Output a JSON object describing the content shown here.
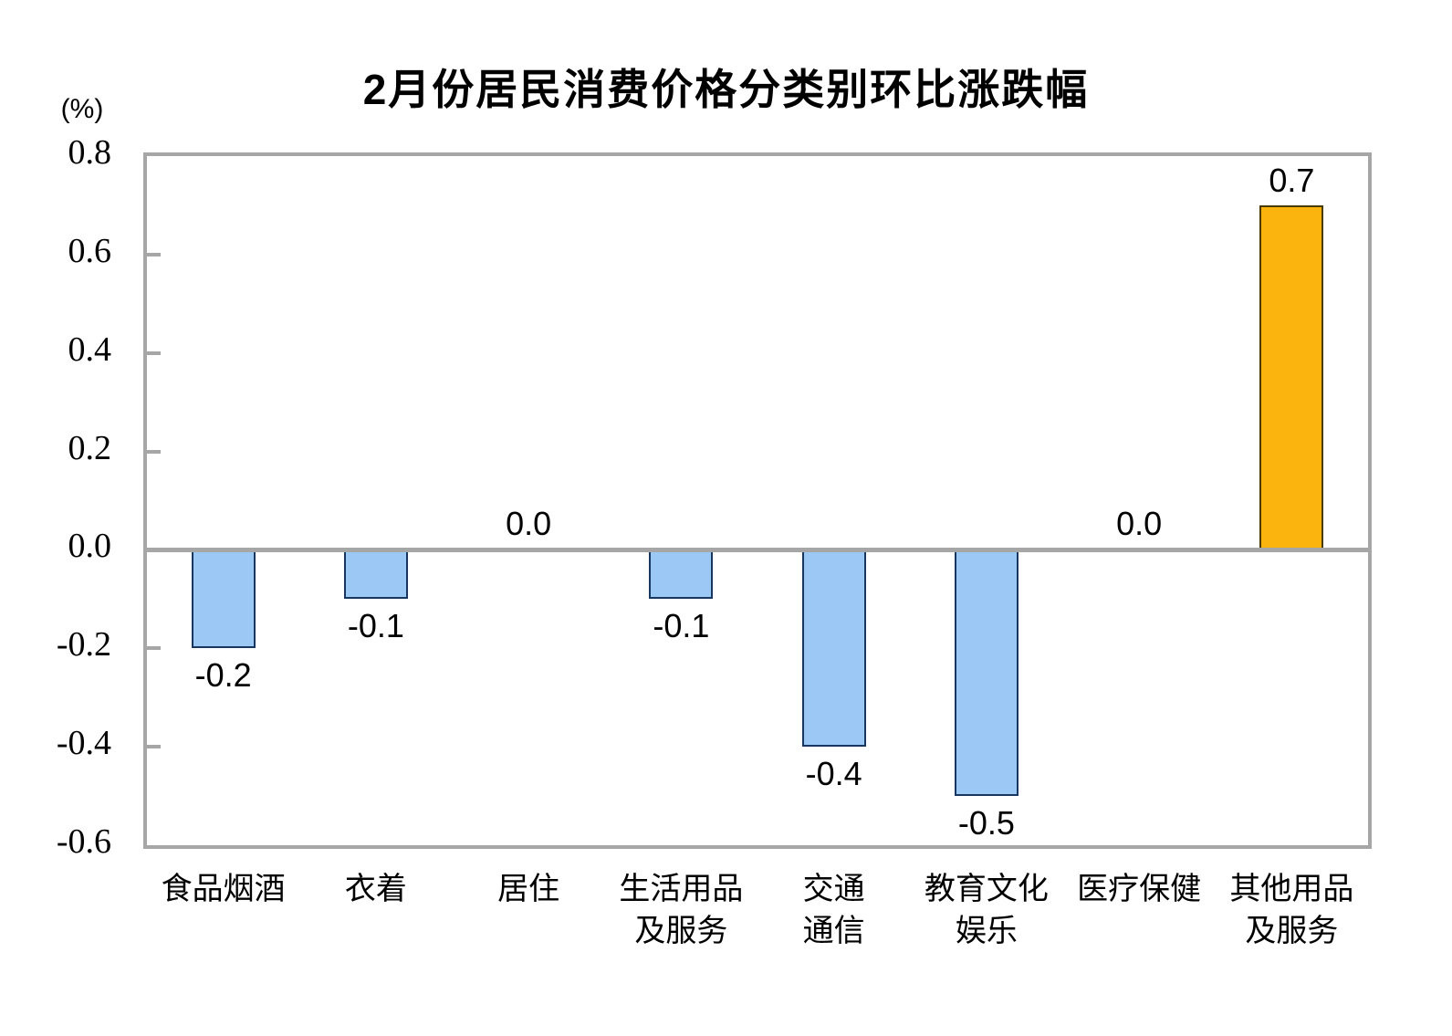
{
  "chart_data": {
    "type": "bar",
    "title": "2月份居民消费价格分类别环比涨跌幅",
    "unit_label": "(%)",
    "categories": [
      "食品烟酒",
      "衣着",
      "居住",
      "生活用品及服务",
      "交通通信",
      "教育文化娱乐",
      "医疗保健",
      "其他用品及服务"
    ],
    "category_label_lines": [
      [
        "食品烟酒"
      ],
      [
        "衣着"
      ],
      [
        "居住"
      ],
      [
        "生活用品",
        "及服务"
      ],
      [
        "交通",
        "通信"
      ],
      [
        "教育文化",
        "娱乐"
      ],
      [
        "医疗保健"
      ],
      [
        "其他用品",
        "及服务"
      ]
    ],
    "category_slugs": [
      "food-tobacco-alcohol",
      "clothing",
      "housing",
      "daily-articles-services",
      "transport-communication",
      "education-culture-entertainment",
      "healthcare",
      "other-articles-services"
    ],
    "values": [
      -0.2,
      -0.1,
      0.0,
      -0.1,
      -0.4,
      -0.5,
      0.0,
      0.7
    ],
    "value_labels": [
      "-0.2",
      "-0.1",
      "0.0",
      "-0.1",
      "-0.4",
      "-0.5",
      "0.0",
      "0.7"
    ],
    "ylim": [
      -0.6,
      0.8
    ],
    "ytick_values": [
      0.8,
      0.6,
      0.4,
      0.2,
      0.0,
      -0.2,
      -0.4,
      -0.6
    ],
    "ytick_labels": [
      "0.8",
      "0.6",
      "0.4",
      "0.2",
      "0.0",
      "-0.2",
      "-0.4",
      "-0.6"
    ],
    "inner_tick_values": [
      0.6,
      0.4,
      0.2,
      -0.2,
      -0.4
    ],
    "grid": "off",
    "legend": "none",
    "colors": {
      "bar_negative_fill": "#9CC8F5",
      "bar_negative_border": "#17375E",
      "bar_positive_fill": "#FBB40D",
      "bar_positive_border": "#4A3A00",
      "axis_gray": "#A6A6A6",
      "text": "#000000"
    }
  }
}
